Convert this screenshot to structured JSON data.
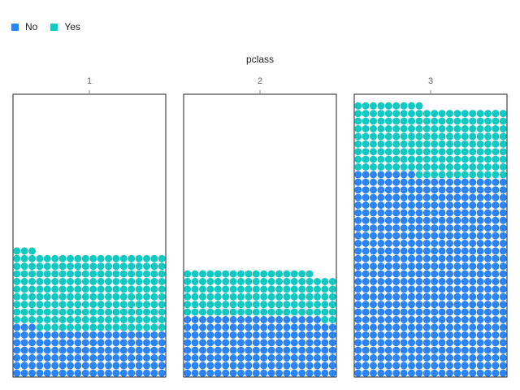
{
  "chart_data": {
    "type": "waffle",
    "facet_label": "pclass",
    "panels": [
      "1",
      "2",
      "3"
    ],
    "series": [
      {
        "name": "No",
        "color": "#2b83f6",
        "values": [
          123,
          158,
          528
        ]
      },
      {
        "name": "Yes",
        "color": "#12c9c2",
        "values": [
          200,
          119,
          181
        ]
      }
    ],
    "units_per_row": 20,
    "legend_position": "top-left"
  }
}
